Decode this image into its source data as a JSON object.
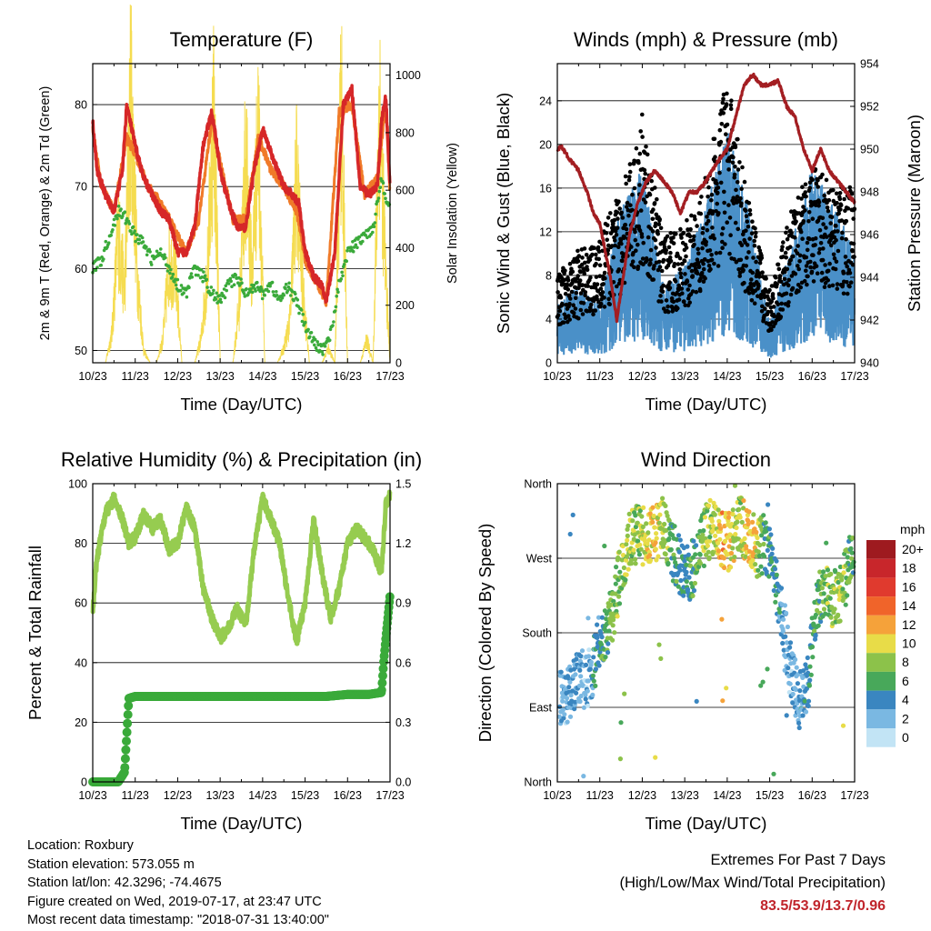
{
  "info": {
    "location": "Location: Roxbury",
    "elevation": "Station elevation: 573.055 m",
    "latlon": "Station lat/lon: 42.3296; -74.4675",
    "created": "Figure created on Wed, 2019-07-17, at 23:47 UTC",
    "timestamp": "Most recent data timestamp: \"2018-07-31 13:40:00\""
  },
  "extremes": {
    "title": "Extremes For Past 7 Days",
    "subtitle": "(High/Low/Max Wind/Total Precipitation)",
    "values": "83.5/53.9/13.7/0.96",
    "value_color": "#c0242b"
  },
  "colors": {
    "temp2m": "#d62728",
    "temp9m": "#f07a28",
    "dewpoint": "#3aaa3a",
    "solar": "#f5dc50",
    "gust": "#000000",
    "wind": "#4a90c8",
    "pressure": "#a31e22",
    "humidity": "#96cc50",
    "precip": "#3aaa3a"
  },
  "chart_data": [
    {
      "type": "line",
      "title": "Temperature (F)",
      "xlabel": "Time (Day/UTC)",
      "ylabel": "2m & 9m T (Red, Orange) & 2m Td (Green)",
      "y2label": "Solar Insolation (Yellow)",
      "xticks": [
        "10/23",
        "11/23",
        "12/23",
        "13/23",
        "14/23",
        "15/23",
        "16/23",
        "17/23"
      ],
      "xlim": [
        10,
        17
      ],
      "ylim": [
        48.5,
        85
      ],
      "y2lim": [
        0,
        1040
      ],
      "yticks": [
        50,
        60,
        70,
        80
      ],
      "y2ticks": [
        0,
        200,
        400,
        600,
        800,
        1000
      ],
      "grid": true,
      "series": [
        {
          "x": [
            10.0,
            10.1,
            10.3,
            10.5,
            10.7,
            10.8,
            11.0,
            11.2,
            11.4,
            11.6,
            11.8,
            12.0,
            12.2,
            12.4,
            12.6,
            12.8,
            12.9,
            13.0,
            13.2,
            13.4,
            13.6,
            13.8,
            14.0,
            14.2,
            14.5,
            14.7,
            14.85,
            15.0,
            15.2,
            15.4,
            15.5,
            15.7,
            15.9,
            16.1,
            16.3,
            16.5,
            16.7,
            16.8,
            16.9,
            17.0
          ],
          "y": [
            78,
            72,
            69,
            67,
            72,
            80,
            75,
            71,
            69,
            67,
            66,
            62,
            62,
            65,
            75,
            79,
            76,
            72,
            68,
            65,
            65,
            72,
            77,
            74,
            70,
            69,
            68,
            62,
            59,
            58,
            56,
            62,
            80,
            82,
            70,
            69,
            70,
            78,
            81,
            70
          ]
        },
        {
          "x": [
            10.0,
            10.2,
            10.5,
            10.8,
            11.0,
            11.3,
            11.6,
            11.9,
            12.2,
            12.5,
            12.8,
            13.0,
            13.3,
            13.6,
            13.9,
            14.2,
            14.5,
            14.8,
            15.0,
            15.3,
            15.5,
            15.8,
            16.1,
            16.4,
            16.7,
            16.9,
            17.0
          ],
          "y": [
            77,
            70,
            67,
            76,
            74,
            70,
            68,
            65,
            62,
            66,
            78,
            73,
            66,
            66,
            76,
            72,
            70,
            67,
            61,
            58,
            56,
            79,
            80,
            69,
            71,
            80,
            69
          ]
        },
        {
          "x": [
            10.0,
            10.2,
            10.4,
            10.6,
            10.8,
            11.0,
            11.2,
            11.4,
            11.6,
            11.8,
            12.0,
            12.2,
            12.4,
            12.6,
            12.8,
            13.0,
            13.2,
            13.4,
            13.6,
            13.8,
            14.0,
            14.2,
            14.4,
            14.6,
            14.8,
            15.0,
            15.2,
            15.4,
            15.6,
            15.8,
            16.0,
            16.2,
            16.4,
            16.6,
            16.8,
            17.0
          ],
          "y": [
            60,
            61,
            64,
            67,
            66,
            64,
            63,
            61,
            62,
            60,
            58,
            57,
            60,
            59,
            57,
            56,
            58,
            59,
            57,
            58,
            57,
            58,
            56,
            58,
            56,
            53,
            51,
            50,
            52,
            58,
            62,
            63,
            64,
            65,
            71,
            67
          ]
        },
        {
          "x": [
            10.0,
            10.15,
            10.3,
            10.45,
            10.6,
            10.75,
            10.9,
            11.05,
            11.2,
            11.35,
            11.5,
            11.65,
            11.8,
            11.95,
            12.1,
            12.25,
            12.4,
            12.55,
            12.7,
            12.85,
            13.0,
            13.15,
            13.3,
            13.45,
            13.6,
            13.75,
            13.9,
            14.05,
            14.2,
            14.35,
            14.5,
            14.65,
            14.8,
            14.95,
            15.1,
            15.25,
            15.4,
            15.55,
            15.7,
            15.85,
            16.0,
            16.15,
            16.3,
            16.45,
            16.6,
            16.75,
            16.9,
            17.0
          ],
          "y": [
            0,
            0,
            0,
            100,
            450,
            250,
            950,
            300,
            40,
            0,
            0,
            80,
            350,
            300,
            0,
            0,
            0,
            80,
            320,
            900,
            0,
            0,
            0,
            200,
            700,
            300,
            800,
            0,
            0,
            0,
            50,
            150,
            650,
            250,
            0,
            0,
            0,
            50,
            0,
            900,
            0,
            0,
            0,
            80,
            0,
            900,
            300,
            0
          ]
        }
      ]
    },
    {
      "type": "scatter",
      "title": "Winds (mph) & Pressure (mb)",
      "xlabel": "Time (Day/UTC)",
      "ylabel": "Sonic Wind & Gust (Blue, Black)",
      "y2label": "Station Pressure (Maroon)",
      "xticks": [
        "10/23",
        "11/23",
        "12/23",
        "13/23",
        "14/23",
        "15/23",
        "16/23",
        "17/23"
      ],
      "xlim": [
        10,
        17
      ],
      "ylim": [
        0,
        27.4
      ],
      "y2lim": [
        940,
        954
      ],
      "yticks": [
        0,
        4,
        8,
        12,
        16,
        20,
        24
      ],
      "y2ticks": [
        940,
        942,
        944,
        946,
        948,
        950,
        952,
        954
      ],
      "grid": true,
      "series": [
        {
          "x": [
            10.0,
            10.5,
            11.0,
            11.5,
            12.0,
            12.5,
            13.0,
            13.5,
            14.0,
            14.5,
            15.0,
            15.5,
            16.0,
            16.5,
            17.0
          ],
          "y": [
            3,
            4,
            3,
            8,
            10,
            4,
            5,
            8,
            12,
            8,
            2,
            6,
            10,
            8,
            6
          ]
        },
        {
          "x": [
            10.0,
            10.5,
            11.0,
            11.5,
            12.0,
            12.5,
            13.0,
            13.5,
            14.0,
            14.5,
            15.0,
            15.5,
            16.0,
            16.5,
            17.0
          ],
          "y": [
            7,
            9,
            10,
            14,
            20,
            10,
            11,
            15,
            23,
            13,
            6,
            12,
            16,
            14,
            14
          ]
        },
        {
          "x": [
            10.0,
            10.1,
            10.3,
            10.5,
            10.7,
            10.85,
            11.0,
            11.25,
            11.4,
            11.55,
            11.7,
            11.9,
            12.1,
            12.3,
            12.5,
            12.7,
            12.9,
            13.1,
            13.3,
            13.5,
            13.8,
            14.0,
            14.2,
            14.4,
            14.6,
            14.8,
            15.0,
            15.2,
            15.4,
            15.6,
            15.8,
            16.0,
            16.2,
            16.4,
            16.6,
            16.8,
            17.0
          ],
          "y": [
            950,
            950.1,
            949.5,
            949,
            948,
            947,
            946.5,
            944,
            942,
            944,
            946,
            947.5,
            948.5,
            949,
            948.5,
            948,
            947,
            948,
            948,
            948.5,
            949.5,
            950,
            951.5,
            953,
            953.5,
            953,
            953,
            953.2,
            952,
            951.5,
            950,
            949,
            950,
            949,
            948.5,
            948,
            947.5
          ]
        }
      ]
    },
    {
      "type": "line",
      "title": "Relative Humidity (%) & Precipitation (in)",
      "xlabel": "Time (Day/UTC)",
      "ylabel": "Percent & Total Rainfall",
      "xticks": [
        "10/23",
        "11/23",
        "12/23",
        "13/23",
        "14/23",
        "15/23",
        "16/23",
        "17/23"
      ],
      "xlim": [
        10,
        17
      ],
      "ylim": [
        0,
        100
      ],
      "y2lim": [
        0,
        1.5
      ],
      "yticks": [
        0,
        20,
        40,
        60,
        80,
        100
      ],
      "y2ticks": [
        0.0,
        0.3,
        0.6,
        0.9,
        1.2,
        1.5
      ],
      "grid": true,
      "series": [
        {
          "x": [
            10.0,
            10.1,
            10.3,
            10.5,
            10.7,
            10.85,
            11.0,
            11.2,
            11.4,
            11.6,
            11.8,
            12.0,
            12.2,
            12.4,
            12.6,
            12.8,
            13.0,
            13.2,
            13.4,
            13.6,
            13.8,
            14.0,
            14.2,
            14.4,
            14.6,
            14.8,
            15.0,
            15.2,
            15.4,
            15.6,
            15.8,
            16.0,
            16.2,
            16.4,
            16.6,
            16.8,
            16.9,
            17.0
          ],
          "y": [
            58,
            75,
            90,
            95,
            88,
            80,
            82,
            90,
            85,
            88,
            78,
            80,
            92,
            85,
            65,
            55,
            48,
            52,
            58,
            52,
            78,
            95,
            88,
            80,
            62,
            47,
            60,
            88,
            70,
            55,
            65,
            80,
            85,
            82,
            78,
            70,
            93,
            96
          ]
        },
        {
          "x": [
            10.0,
            10.6,
            10.75,
            10.85,
            11.0,
            12.0,
            13.0,
            14.0,
            15.0,
            15.5,
            16.0,
            16.5,
            16.8,
            16.85,
            16.9,
            17.0
          ],
          "y": [
            0,
            0,
            0.05,
            0.42,
            0.43,
            0.43,
            0.43,
            0.43,
            0.43,
            0.43,
            0.44,
            0.44,
            0.45,
            0.6,
            0.72,
            0.94
          ]
        }
      ]
    },
    {
      "type": "scatter",
      "title": "Wind Direction",
      "xlabel": "Time (Day/UTC)",
      "ylabel": "Direction (Colored By Speed)",
      "xticks": [
        "10/23",
        "11/23",
        "12/23",
        "13/23",
        "14/23",
        "15/23",
        "16/23",
        "17/23"
      ],
      "xlim": [
        10,
        17
      ],
      "ylim": [
        0,
        360
      ],
      "yticklabels": [
        "North",
        "East",
        "South",
        "West",
        "North"
      ],
      "grid": true,
      "legend": {
        "title": "mph",
        "placement": "right",
        "labels": [
          "20+",
          "18",
          "16",
          "14",
          "12",
          "10",
          "8",
          "6",
          "4",
          "2",
          "0"
        ],
        "colors": [
          "#9e1a1f",
          "#c8262b",
          "#e03a2e",
          "#f0642a",
          "#f5a23a",
          "#e8dc48",
          "#8cc24a",
          "#48a85a",
          "#3a86c0",
          "#7ab8e2",
          "#c2e4f5"
        ]
      },
      "series": [
        {
          "x": [
            10.1,
            10.3,
            10.5,
            10.7,
            10.9,
            11.1,
            11.3,
            11.5,
            11.7,
            11.9,
            12.1,
            12.3,
            12.5,
            12.7,
            12.9,
            13.1,
            13.3,
            13.5,
            13.7,
            13.9,
            14.1,
            14.3,
            14.5,
            14.7,
            14.9,
            15.1,
            15.3,
            15.5,
            15.7,
            15.9,
            16.1,
            16.3,
            16.5,
            16.7,
            16.9
          ],
          "y": [
            100,
            110,
            130,
            120,
            150,
            180,
            200,
            260,
            290,
            300,
            290,
            300,
            310,
            280,
            260,
            250,
            270,
            300,
            310,
            290,
            290,
            310,
            300,
            280,
            290,
            250,
            200,
            130,
            100,
            120,
            220,
            230,
            220,
            230,
            270
          ],
          "speed": [
            2,
            3,
            3,
            2,
            4,
            6,
            7,
            8,
            9,
            8,
            10,
            11,
            9,
            6,
            5,
            5,
            6,
            8,
            9,
            12,
            10,
            8,
            12,
            9,
            6,
            5,
            3,
            2,
            3,
            4,
            6,
            7,
            8,
            9,
            6
          ]
        }
      ]
    }
  ]
}
